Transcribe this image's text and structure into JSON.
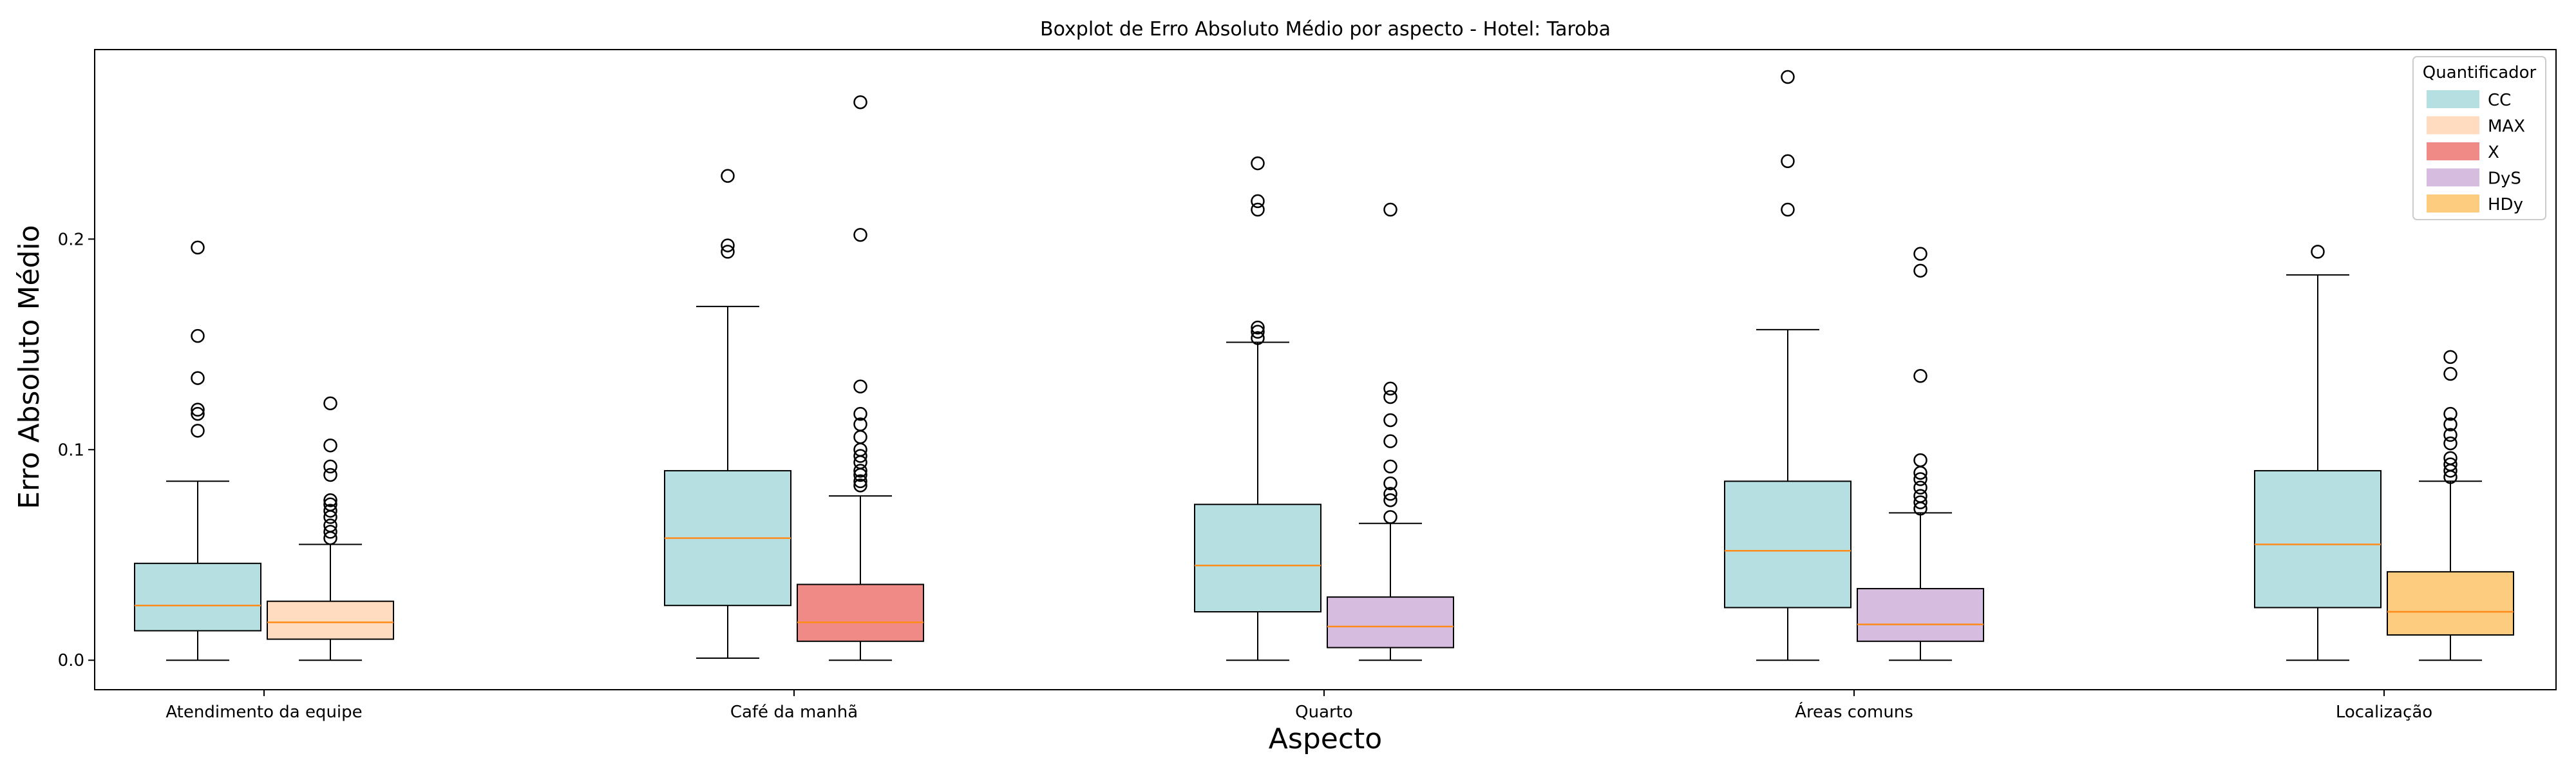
{
  "chart_data": {
    "type": "box",
    "title": "Boxplot de Erro Absoluto Médio por aspecto - Hotel: Taroba",
    "xlabel": "Aspecto",
    "ylabel": "Erro Absoluto Médio",
    "ylim": [
      -0.014,
      0.29
    ],
    "yticks": [
      {
        "value": 0.0,
        "label": "0.0"
      },
      {
        "value": 0.1,
        "label": "0.1"
      },
      {
        "value": 0.2,
        "label": "0.2"
      }
    ],
    "grid": false,
    "legend": {
      "title": "Quantificador",
      "position": "top-right",
      "entries": [
        {
          "label": "CC",
          "color": "#b5dfe0"
        },
        {
          "label": "MAX",
          "color": "#ffdcc0"
        },
        {
          "label": "X",
          "color": "#f08a87"
        },
        {
          "label": "DyS",
          "color": "#d6bde0"
        },
        {
          "label": "HDy",
          "color": "#fdcc7f"
        }
      ]
    },
    "median_color": "#ff8c1a",
    "categories": [
      "Atendimento da equipe",
      "Café da manhã",
      "Quarto",
      "Áreas comuns",
      "Localização"
    ],
    "boxes": [
      {
        "category": "Atendimento da equipe",
        "quantifier": "CC",
        "color": "#b5dfe0",
        "whisker_low": 0.0,
        "q1": 0.014,
        "median": 0.026,
        "q3": 0.046,
        "whisker_high": 0.085,
        "outliers": [
          0.109,
          0.117,
          0.119,
          0.134,
          0.154,
          0.196
        ]
      },
      {
        "category": "Atendimento da equipe",
        "quantifier": "MAX",
        "color": "#ffdcc0",
        "whisker_low": 0.0,
        "q1": 0.01,
        "median": 0.018,
        "q3": 0.028,
        "whisker_high": 0.055,
        "outliers": [
          0.058,
          0.061,
          0.064,
          0.068,
          0.071,
          0.074,
          0.076,
          0.088,
          0.092,
          0.102,
          0.122
        ]
      },
      {
        "category": "Café da manhã",
        "quantifier": "CC",
        "color": "#b5dfe0",
        "whisker_low": 0.001,
        "q1": 0.026,
        "median": 0.058,
        "q3": 0.09,
        "whisker_high": 0.168,
        "outliers": [
          0.194,
          0.197,
          0.23
        ]
      },
      {
        "category": "Café da manhã",
        "quantifier": "X",
        "color": "#f08a87",
        "whisker_low": 0.0,
        "q1": 0.009,
        "median": 0.018,
        "q3": 0.036,
        "whisker_high": 0.078,
        "outliers": [
          0.083,
          0.085,
          0.088,
          0.09,
          0.094,
          0.097,
          0.1,
          0.106,
          0.112,
          0.117,
          0.13,
          0.202,
          0.265
        ]
      },
      {
        "category": "Quarto",
        "quantifier": "CC",
        "color": "#b5dfe0",
        "whisker_low": 0.0,
        "q1": 0.023,
        "median": 0.045,
        "q3": 0.074,
        "whisker_high": 0.151,
        "outliers": [
          0.153,
          0.156,
          0.158,
          0.214,
          0.218,
          0.236
        ]
      },
      {
        "category": "Quarto",
        "quantifier": "DyS",
        "color": "#d6bde0",
        "whisker_low": 0.0,
        "q1": 0.006,
        "median": 0.016,
        "q3": 0.03,
        "whisker_high": 0.065,
        "outliers": [
          0.068,
          0.076,
          0.079,
          0.084,
          0.092,
          0.104,
          0.114,
          0.125,
          0.129,
          0.214
        ]
      },
      {
        "category": "Áreas comuns",
        "quantifier": "CC",
        "color": "#b5dfe0",
        "whisker_low": 0.0,
        "q1": 0.025,
        "median": 0.052,
        "q3": 0.085,
        "whisker_high": 0.157,
        "outliers": [
          0.214,
          0.237,
          0.277
        ]
      },
      {
        "category": "Áreas comuns",
        "quantifier": "DyS",
        "color": "#d6bde0",
        "whisker_low": 0.0,
        "q1": 0.009,
        "median": 0.017,
        "q3": 0.034,
        "whisker_high": 0.07,
        "outliers": [
          0.072,
          0.075,
          0.078,
          0.082,
          0.086,
          0.089,
          0.095,
          0.135,
          0.185,
          0.193
        ]
      },
      {
        "category": "Localização",
        "quantifier": "CC",
        "color": "#b5dfe0",
        "whisker_low": 0.0,
        "q1": 0.025,
        "median": 0.055,
        "q3": 0.09,
        "whisker_high": 0.183,
        "outliers": [
          0.194
        ]
      },
      {
        "category": "Localização",
        "quantifier": "HDy",
        "color": "#fdcc7f",
        "whisker_low": 0.0,
        "q1": 0.012,
        "median": 0.023,
        "q3": 0.042,
        "whisker_high": 0.085,
        "outliers": [
          0.087,
          0.09,
          0.093,
          0.096,
          0.103,
          0.107,
          0.112,
          0.117,
          0.136,
          0.144
        ]
      }
    ]
  }
}
